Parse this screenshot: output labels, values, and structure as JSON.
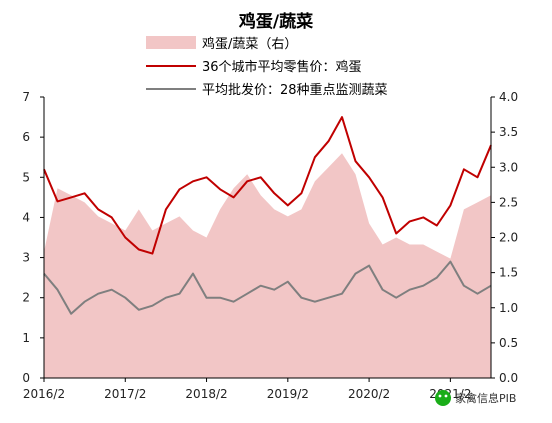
{
  "chart_data": {
    "type": "line+area",
    "title": "鸡蛋/蔬菜",
    "x_tick_labels": [
      "2016/2",
      "2017/2",
      "2018/2",
      "2019/2",
      "2020/2",
      "2021/2"
    ],
    "x_range": [
      "2016-02",
      "2021-08"
    ],
    "y_left": {
      "ylim": [
        0,
        7
      ],
      "ticks": [
        "0",
        "1",
        "2",
        "3",
        "4",
        "5",
        "6",
        "7"
      ]
    },
    "y_right": {
      "ylim": [
        0,
        4
      ],
      "ticks": [
        "0.0",
        "0.5",
        "1.0",
        "1.5",
        "2.0",
        "2.5",
        "3.0",
        "3.5",
        "4.0"
      ]
    },
    "legend_placement": "top-center",
    "grid": false,
    "x": [
      "2016-02",
      "2016-04",
      "2016-06",
      "2016-08",
      "2016-10",
      "2016-12",
      "2017-02",
      "2017-04",
      "2017-06",
      "2017-08",
      "2017-10",
      "2017-12",
      "2018-02",
      "2018-04",
      "2018-06",
      "2018-08",
      "2018-10",
      "2018-12",
      "2019-02",
      "2019-04",
      "2019-06",
      "2019-08",
      "2019-10",
      "2019-12",
      "2020-02",
      "2020-04",
      "2020-06",
      "2020-08",
      "2020-10",
      "2020-12",
      "2021-02",
      "2021-04",
      "2021-06",
      "2021-08"
    ],
    "series": [
      {
        "name": "鸡蛋/蔬菜（右）",
        "axis": "right",
        "style": "area",
        "color": "#f2c6c6",
        "values": [
          1.8,
          2.7,
          2.6,
          2.5,
          2.3,
          2.2,
          2.1,
          2.4,
          2.1,
          2.2,
          2.3,
          2.1,
          2.0,
          2.4,
          2.7,
          2.9,
          2.6,
          2.4,
          2.3,
          2.4,
          2.8,
          3.0,
          3.2,
          2.9,
          2.2,
          1.9,
          2.0,
          1.9,
          1.9,
          1.8,
          1.7,
          2.4,
          2.5,
          2.6
        ]
      },
      {
        "name": "36个城市平均零售价：鸡蛋",
        "axis": "left",
        "style": "line",
        "color": "#c00000",
        "values": [
          5.2,
          4.4,
          4.5,
          4.6,
          4.2,
          4.0,
          3.5,
          3.2,
          3.1,
          4.2,
          4.7,
          4.9,
          5.0,
          4.7,
          4.5,
          4.9,
          5.0,
          4.6,
          4.3,
          4.6,
          5.5,
          5.9,
          6.5,
          5.4,
          5.0,
          4.5,
          3.6,
          3.9,
          4.0,
          3.8,
          4.3,
          5.2,
          5.0,
          5.8
        ]
      },
      {
        "name": "平均批发价：28种重点监测蔬菜",
        "axis": "left",
        "style": "line",
        "color": "#7f7f7f",
        "values": [
          2.6,
          2.2,
          1.6,
          1.9,
          2.1,
          2.2,
          2.0,
          1.7,
          1.8,
          2.0,
          2.1,
          2.6,
          2.0,
          2.0,
          1.9,
          2.1,
          2.3,
          2.2,
          2.4,
          2.0,
          1.9,
          2.0,
          2.1,
          2.6,
          2.8,
          2.2,
          2.0,
          2.2,
          2.3,
          2.5,
          2.9,
          2.3,
          2.1,
          2.3
        ]
      }
    ]
  },
  "watermark": {
    "label": "家禽信息PIB",
    "icon": "wechat-icon"
  }
}
